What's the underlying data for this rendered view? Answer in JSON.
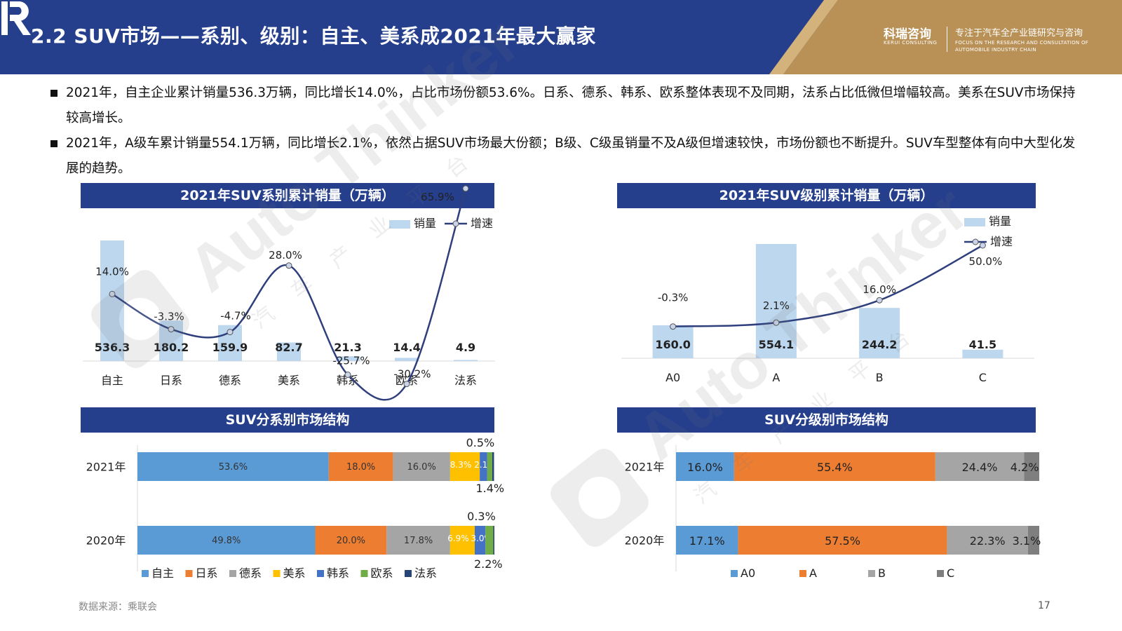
{
  "header": {
    "title": "2.2 SUV市场——系别、级别：自主、美系成2021年最大赢家",
    "brand_name": "科瑞咨询",
    "brand_name_en": "KERUI CONSULTING",
    "tagline": "专注于汽车全产业链研究与咨询",
    "tagline_en": "FOCUS ON THE RESEARCH AND CONSULTATION OF AUTOMOBILE INDUSTRY CHAIN",
    "colors": {
      "navy": "#253f8d",
      "gold": "#b99156",
      "gold_light": "#d4b27c"
    }
  },
  "bullets": [
    "2021年，自主企业累计销量536.3万辆，同比增长14.0%，占比市场份额53.6%。日系、德系、韩系、欧系整体表现不及同期，法系占比低微但增幅较高。美系在SUV市场保持较高增长。",
    "2021年，A级车累计销量554.1万辆，同比增长2.1%，依然占据SUV市场最大份额；B级、C级虽销量不及A级但增速较快，市场份额也不断提升。SUV车型整体有向中大型化发展的趋势。"
  ],
  "watermark": {
    "text": "Auto Thinker",
    "subtext": "汽车产业平台"
  },
  "chart_data": [
    {
      "type": "bar",
      "title": "2021年SUV系别累计销量（万辆）",
      "categories": [
        "自主",
        "日系",
        "德系",
        "美系",
        "韩系",
        "欧系",
        "法系"
      ],
      "series": [
        {
          "name": "销量",
          "type": "bar",
          "values": [
            536.3,
            180.2,
            159.9,
            82.7,
            21.3,
            14.4,
            4.9
          ],
          "labels": [
            "536.3",
            "180.2",
            "159.9",
            "82.7",
            "21.3",
            "14.4",
            "4.9"
          ],
          "color": "#bdd7ee"
        },
        {
          "name": "增速",
          "type": "line",
          "values": [
            14.0,
            -3.3,
            -4.7,
            28.0,
            -25.7,
            -30.2,
            65.9
          ],
          "labels": [
            "14.0%",
            "-3.3%",
            "-4.7%",
            "28.0%",
            "-25.7%",
            "-30.2%",
            "65.9%"
          ],
          "color": "#2f3f7d"
        }
      ],
      "legend": [
        "销量",
        "增速"
      ],
      "legend_position": "top-right"
    },
    {
      "type": "bar",
      "title": "2021年SUV级别累计销量（万辆）",
      "categories": [
        "A0",
        "A",
        "B",
        "C"
      ],
      "series": [
        {
          "name": "销量",
          "type": "bar",
          "values": [
            160.0,
            554.1,
            244.2,
            41.5
          ],
          "labels": [
            "160.0",
            "554.1",
            "244.2",
            "41.5"
          ],
          "color": "#bdd7ee"
        },
        {
          "name": "增速",
          "type": "line",
          "values": [
            -0.3,
            2.1,
            16.0,
            50.0
          ],
          "labels": [
            "-0.3%",
            "2.1%",
            "16.0%",
            "50.0%"
          ],
          "color": "#2f3f7d"
        }
      ],
      "legend": [
        "销量",
        "增速"
      ],
      "legend_position": "top-right"
    },
    {
      "type": "bar",
      "stacked": "percent",
      "orientation": "horizontal",
      "title": "SUV分系别市场结构",
      "categories": [
        "2021年",
        "2020年"
      ],
      "series": [
        {
          "name": "自主",
          "values": [
            53.6,
            49.8
          ],
          "labels": [
            "53.6%",
            "49.8%"
          ],
          "color": "#5b9bd5"
        },
        {
          "name": "日系",
          "values": [
            18.0,
            20.0
          ],
          "labels": [
            "18.0%",
            "20.0%"
          ],
          "color": "#ed7d31"
        },
        {
          "name": "德系",
          "values": [
            16.0,
            17.8
          ],
          "labels": [
            "16.0%",
            "17.8%"
          ],
          "color": "#a5a5a5"
        },
        {
          "name": "美系",
          "values": [
            8.3,
            6.9
          ],
          "labels": [
            "8.3%",
            "6.9%"
          ],
          "color": "#ffc000"
        },
        {
          "name": "韩系",
          "values": [
            2.1,
            3.0
          ],
          "labels": [
            "2.1%",
            "3.0%"
          ],
          "color": "#4472c4"
        },
        {
          "name": "欧系",
          "values": [
            1.4,
            2.2
          ],
          "labels": [
            "1.4%",
            "2.2%"
          ],
          "color": "#70ad47"
        },
        {
          "name": "法系",
          "values": [
            0.5,
            0.3
          ],
          "labels": [
            "0.5%",
            "0.3%"
          ],
          "color": "#264478"
        }
      ],
      "legend": [
        "自主",
        "日系",
        "德系",
        "美系",
        "韩系",
        "欧系",
        "法系"
      ],
      "legend_position": "bottom"
    },
    {
      "type": "bar",
      "stacked": "percent",
      "orientation": "horizontal",
      "title": "SUV分级别市场结构",
      "categories": [
        "2021年",
        "2020年"
      ],
      "series": [
        {
          "name": "A0",
          "values": [
            16.0,
            17.1
          ],
          "labels": [
            "16.0%",
            "17.1%"
          ],
          "color": "#5b9bd5"
        },
        {
          "name": "A",
          "values": [
            55.4,
            57.5
          ],
          "labels": [
            "55.4%",
            "57.5%"
          ],
          "color": "#ed7d31"
        },
        {
          "name": "B",
          "values": [
            24.4,
            22.3
          ],
          "labels": [
            "24.4%",
            "22.3%"
          ],
          "color": "#a5a5a5"
        },
        {
          "name": "C",
          "values": [
            4.2,
            3.1
          ],
          "labels": [
            "4.2%",
            "3.1%"
          ],
          "color": "#7f7f7f"
        }
      ],
      "legend": [
        "A0",
        "A",
        "B",
        "C"
      ],
      "legend_position": "bottom"
    }
  ],
  "footer": {
    "source": "数据来源：乘联会",
    "page": "17"
  }
}
